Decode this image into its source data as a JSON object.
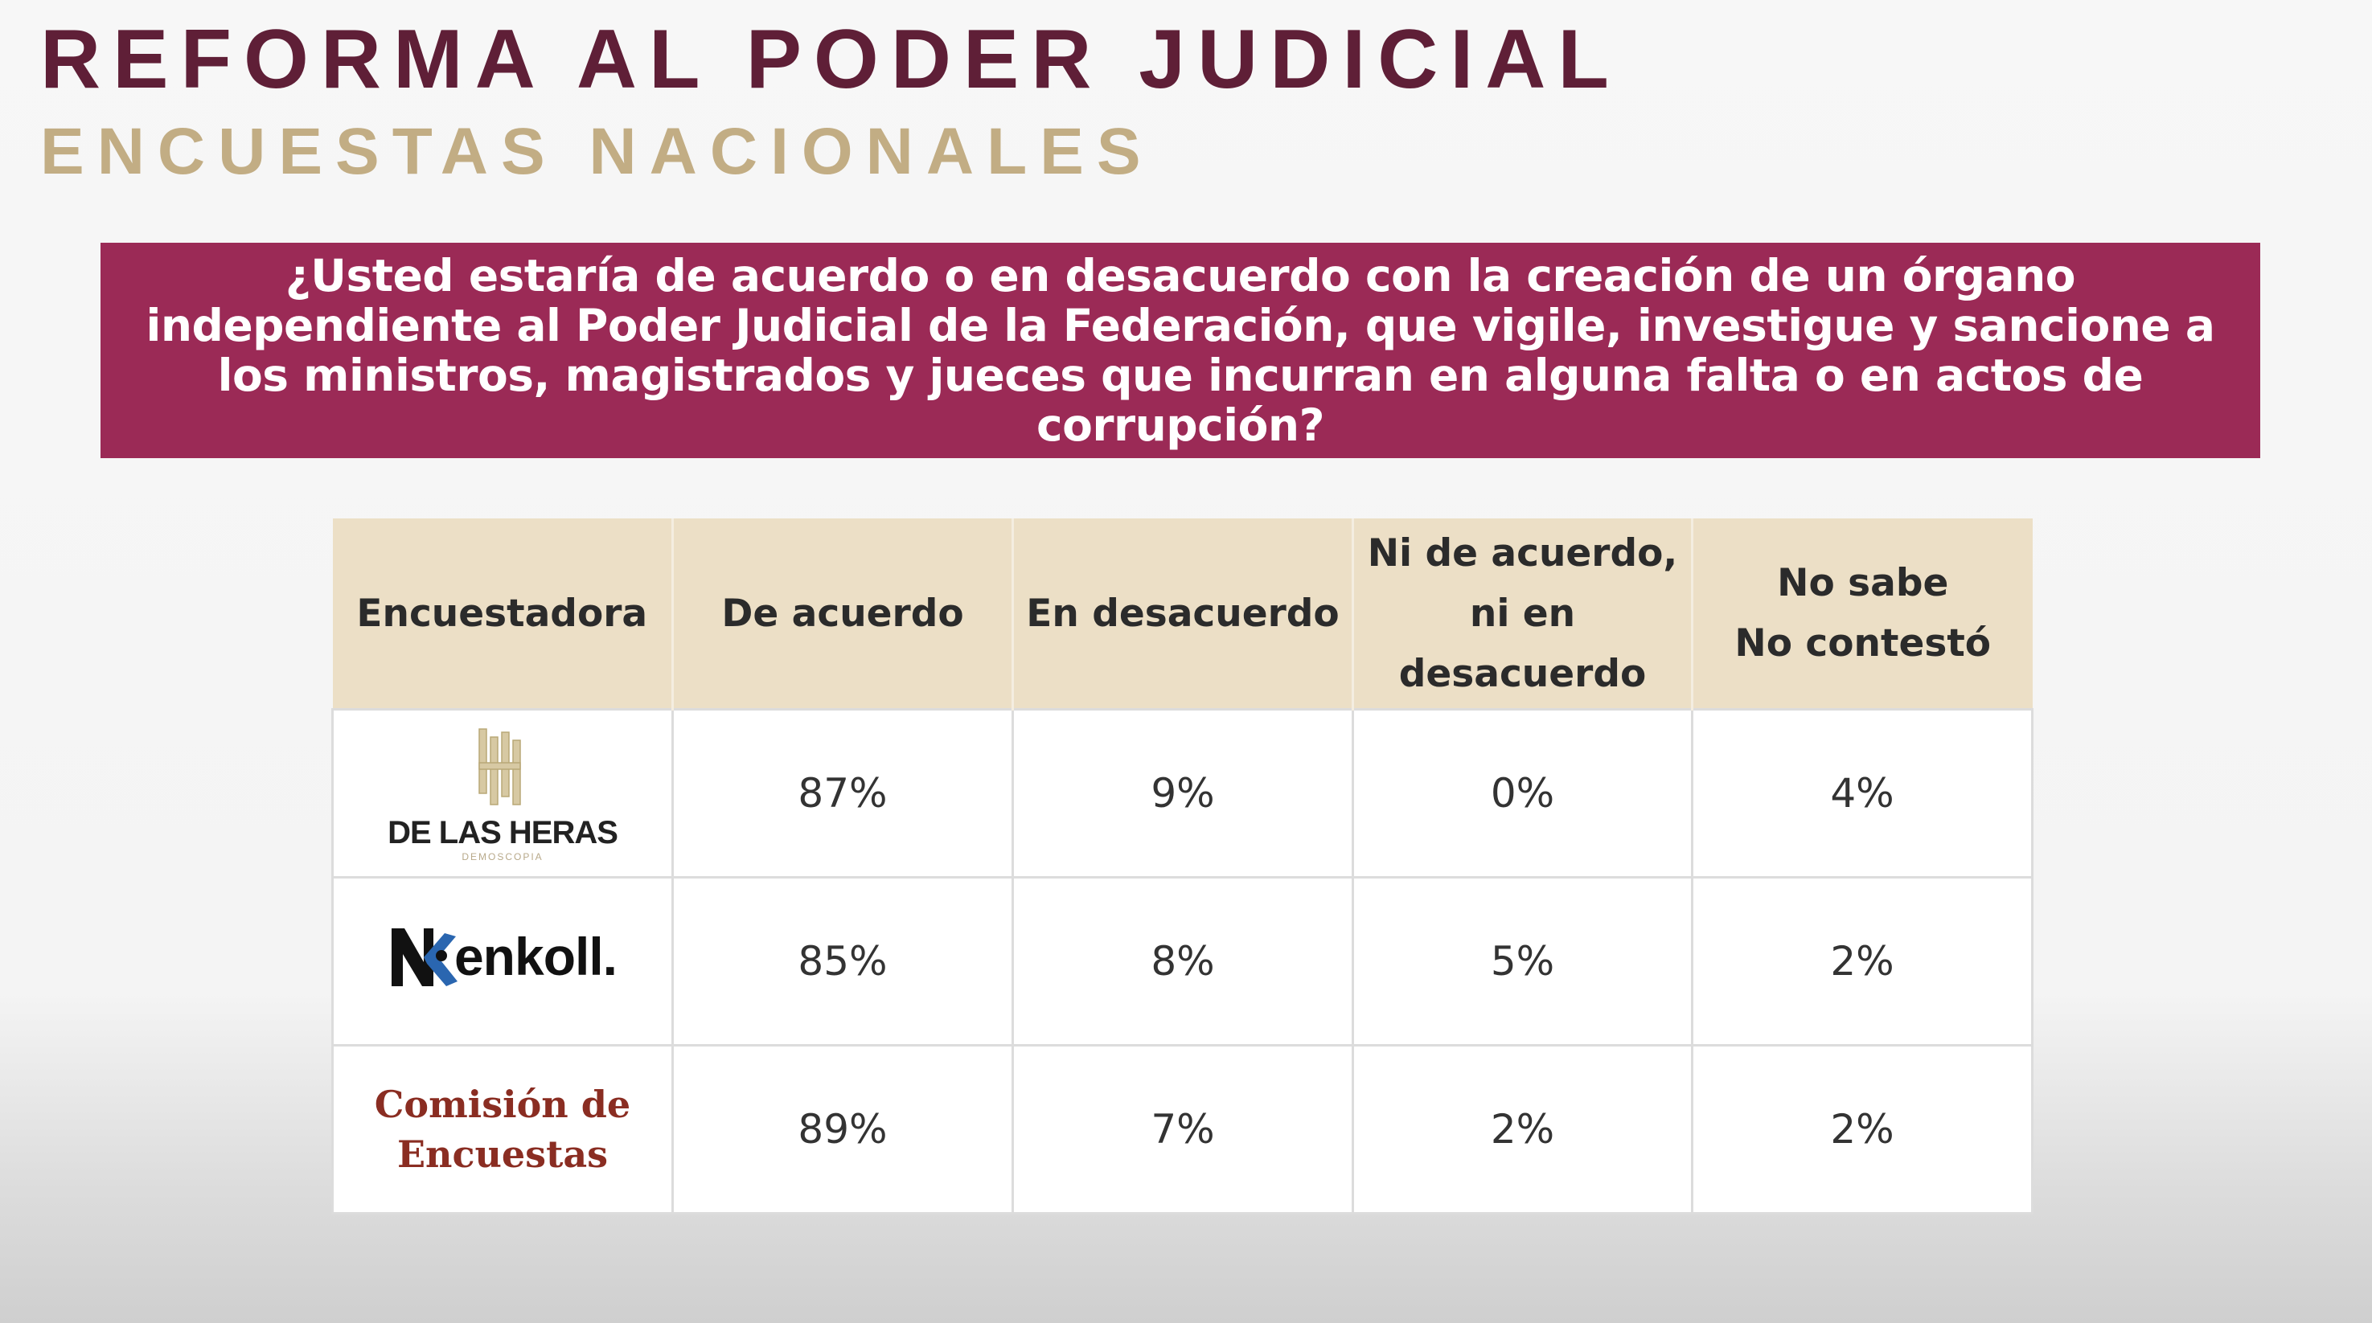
{
  "header": {
    "title": "REFORMA AL PODER JUDICIAL",
    "subtitle": "ENCUESTAS NACIONALES"
  },
  "question": "¿Usted estaría de acuerdo o en desacuerdo con la creación de un órgano independiente al Poder Judicial de la Federación, que vigile, investigue y sancione a los ministros, magistrados y jueces que incurran en alguna falta o en actos de corrupción?",
  "colors": {
    "title": "#5f1f37",
    "subtitle": "#c2ad84",
    "question_bg": "#9b2a56",
    "table_header_bg": "#ecdfc6"
  },
  "table": {
    "headers": [
      "Encuestadora",
      "De acuerdo",
      "En desacuerdo",
      "Ni de acuerdo,\nni en\ndesacuerdo",
      "No sabe\nNo contestó"
    ],
    "rows": [
      {
        "pollster": "DE LAS HERAS",
        "pollster_sub": "DEMOSCOPIA",
        "logo_icon": "building-columns-logo-icon",
        "values": [
          "87%",
          "9%",
          "0%",
          "4%"
        ]
      },
      {
        "pollster": "enkoll.",
        "logo_icon": "enkoll-k-logo-icon",
        "values": [
          "85%",
          "8%",
          "5%",
          "2%"
        ]
      },
      {
        "pollster": "Comisión de\nEncuestas",
        "values": [
          "89%",
          "7%",
          "2%",
          "2%"
        ]
      }
    ]
  }
}
